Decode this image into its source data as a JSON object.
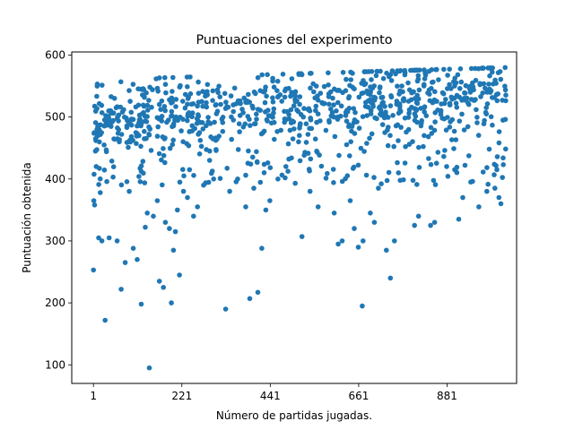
{
  "chart_data": {
    "type": "scatter",
    "title": "Puntuaciones del experimento",
    "xlabel": "Número de partidas jugadas.",
    "ylabel": "Puntuación obtenida",
    "xlim": [
      -53,
      1054
    ],
    "ylim": [
      70,
      605
    ],
    "xticks": [
      1,
      221,
      441,
      661,
      881
    ],
    "yticks": [
      100,
      200,
      300,
      400,
      500,
      600
    ],
    "grid": false,
    "legend": "none",
    "marker_color": "#1f77b4",
    "n_points": 1000,
    "trend": {
      "x": [
        1,
        200,
        500,
        800,
        1000
      ],
      "median_y": [
        500,
        505,
        520,
        535,
        555
      ]
    },
    "series": [
      {
        "x": [
          1,
          2,
          4,
          6,
          8,
          10,
          14,
          18,
          22,
          30,
          40,
          50,
          60,
          70,
          80,
          90,
          100,
          110,
          120,
          130,
          135,
          140,
          150,
          160,
          165,
          170,
          175,
          180,
          190,
          195,
          200,
          205,
          210,
          215,
          225,
          235,
          240,
          250,
          260,
          275,
          290,
          300,
          330,
          340,
          360,
          380,
          390,
          400,
          410,
          420,
          430,
          440,
          460,
          480,
          520,
          540,
          560,
          600,
          610,
          620,
          640,
          650,
          660,
          670,
          672,
          690,
          700,
          710,
          730,
          740,
          750,
          760,
          800,
          810,
          840,
          850,
          880,
          900,
          910,
          920,
          940,
          960,
          980,
          1000,
          1005,
          1010,
          1015,
          1020
        ],
        "y": [
          253,
          365,
          358,
          445,
          420,
          480,
          305,
          378,
          300,
          172,
          305,
          403,
          300,
          222,
          265,
          380,
          288,
          270,
          198,
          322,
          345,
          95,
          340,
          365,
          235,
          500,
          225,
          330,
          320,
          200,
          285,
          315,
          350,
          245,
          380,
          370,
          415,
          340,
          355,
          390,
          430,
          400,
          190,
          380,
          400,
          355,
          207,
          385,
          217,
          288,
          350,
          365,
          400,
          420,
          307,
          380,
          355,
          345,
          295,
          300,
          365,
          320,
          290,
          195,
          300,
          345,
          330,
          385,
          285,
          240,
          300,
          410,
          325,
          340,
          325,
          330,
          420,
          415,
          335,
          370,
          395,
          355,
          380,
          385,
          415,
          370,
          360,
          495
        ]
      }
    ]
  }
}
